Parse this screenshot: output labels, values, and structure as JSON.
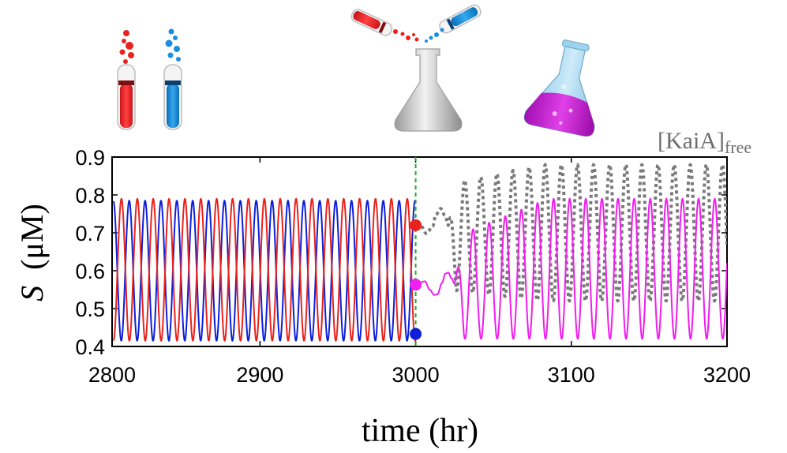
{
  "chart_data": {
    "type": "line",
    "xlabel": "time (hr)",
    "ylabel_symbol": "S",
    "ylabel_unit": "(μM)",
    "xlim": [
      2805,
      3200
    ],
    "ylim": [
      0.4,
      0.9
    ],
    "xticks": [
      2800,
      2900,
      3000,
      3100,
      3200
    ],
    "yticks": [
      0.4,
      0.5,
      0.6,
      0.7,
      0.8,
      0.9
    ],
    "grid": false,
    "mixing_time": 3000,
    "series": [
      {
        "key": "red",
        "color": "#e8231e",
        "t_start": 2806,
        "t_end": 3000,
        "period": 10.2,
        "peak": 0.79,
        "trough": 0.415,
        "first_peak_t": 2811
      },
      {
        "key": "blue",
        "color": "#0f1fd9",
        "t_start": 2806,
        "t_end": 3000,
        "period": 10.2,
        "peak": 0.785,
        "trough": 0.415,
        "first_peak_t": 2816
      },
      {
        "key": "mixed",
        "color": "#f01ef0",
        "t_start": 3000,
        "t_end": 3200,
        "early": [
          [
            3000,
            0.563
          ],
          [
            3006,
            0.572
          ],
          [
            3009,
            0.55
          ],
          [
            3012,
            0.536
          ],
          [
            3014,
            0.538
          ],
          [
            3017,
            0.568
          ],
          [
            3019,
            0.592
          ],
          [
            3021,
            0.595
          ],
          [
            3023,
            0.58
          ],
          [
            3025,
            0.566
          ]
        ],
        "period": 10.35,
        "first_peak_t": 3026.5,
        "trough": 0.42,
        "peak_start": 0.69,
        "peak_end": 0.79
      },
      {
        "name": "[KaiA]",
        "name_sub": "free",
        "key": "kaia",
        "color": "#7a7a7a",
        "dashed": true,
        "t_start": 3000,
        "t_end": 3200,
        "early": [
          [
            3000,
            0.72
          ],
          [
            3003,
            0.72
          ],
          [
            3007,
            0.698
          ],
          [
            3011,
            0.718
          ],
          [
            3013,
            0.748
          ],
          [
            3016,
            0.764
          ],
          [
            3019,
            0.745
          ],
          [
            3021,
            0.72
          ]
        ],
        "period": 10.35,
        "first_peak_t": 3031.5,
        "trough_start": 0.55,
        "trough_end": 0.52,
        "peak_start": 0.83,
        "peak_end": 0.88
      }
    ],
    "markers": [
      {
        "t": 3000,
        "y": 0.72,
        "color": "#e8231e"
      },
      {
        "t": 3000,
        "y": 0.563,
        "color": "#f01ef0"
      },
      {
        "t": 3000,
        "y": 0.433,
        "color": "#0f1fd9"
      }
    ]
  },
  "illustration": {
    "tubes": [
      "red",
      "blue"
    ],
    "pouring_tubes": [
      "red",
      "blue"
    ],
    "empty_flask": "gray",
    "mixed_flask": "magenta"
  }
}
